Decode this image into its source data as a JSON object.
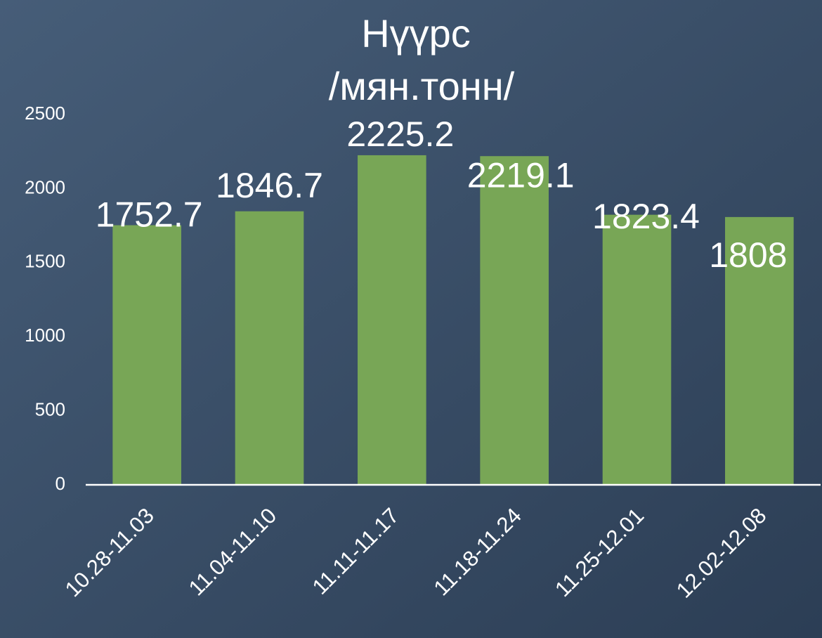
{
  "chart_data": {
    "type": "bar",
    "title": "Нүүрс",
    "subtitle": "/мян.тонн/",
    "categories": [
      "10.28-11.03",
      "11.04-11.10",
      "11.11-11.17",
      "11.18-11.24",
      "11.25-12.01",
      "12.02-12.08"
    ],
    "values": [
      1752.7,
      1846.7,
      2225.2,
      2219.1,
      1823.4,
      1808
    ],
    "color": "#78a656",
    "ylim": [
      0,
      2500
    ],
    "yticks": [
      0,
      500,
      1000,
      1500,
      2000,
      2500
    ],
    "grid": false
  }
}
